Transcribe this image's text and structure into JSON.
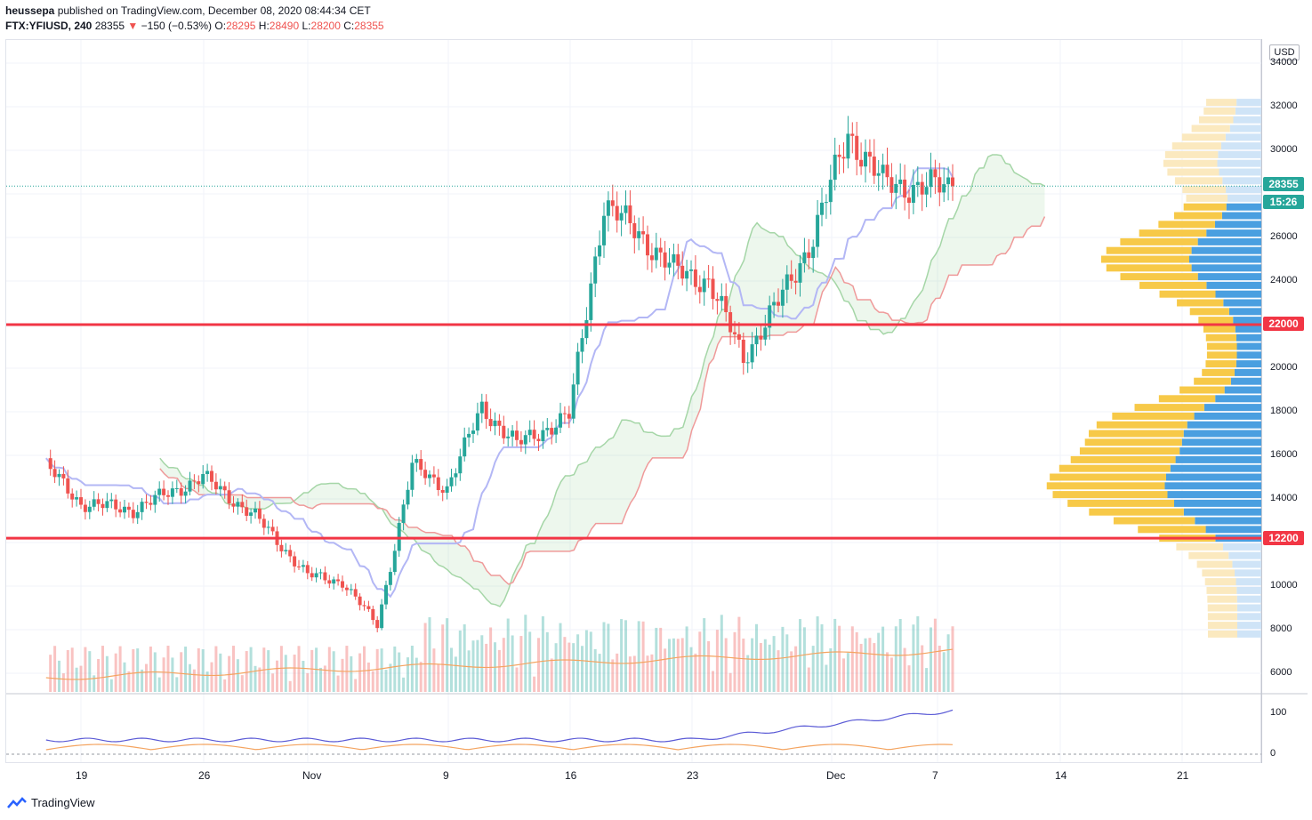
{
  "header": {
    "author": "heussepa",
    "published_text": " published on TradingView.com, December 08, 2020 08:44:34 CET",
    "symbol": "FTX:YFIUSD, 240",
    "last": "28355",
    "change_arrow": "▼",
    "change": "−150 (−0.53%)",
    "open_label": "O:",
    "open": "28295",
    "high_label": "H:",
    "high": "28490",
    "low_label": "L:",
    "low": "28200",
    "close_label": "C:",
    "close": "28355"
  },
  "axis": {
    "currency": "USD",
    "price_labels": [
      "34000",
      "32000",
      "30000",
      "26000",
      "24000",
      "20000",
      "18000",
      "16000",
      "14000",
      "10000",
      "8000",
      "6000"
    ],
    "indicator_labels": [
      "100",
      "0"
    ],
    "time_labels": [
      "19",
      "26",
      "Nov",
      "9",
      "16",
      "23",
      "Dec",
      "7",
      "14",
      "21"
    ]
  },
  "markers": {
    "current_price": "28355",
    "countdown": "15:26",
    "level_high": "22000",
    "level_low": "12200"
  },
  "colors": {
    "up": "#26a69a",
    "down": "#ef5350",
    "level": "#f23645",
    "vp_up": "#f7c948",
    "vp_down": "#4a9fe0",
    "accent": "#2962ff"
  },
  "footer": {
    "brand": "TradingView"
  },
  "chart_data": {
    "type": "candlestick",
    "interval": "240",
    "ylim": [
      6000,
      34000
    ],
    "horizontal_levels": [
      22000,
      12200
    ],
    "approx_close_series": {
      "x": [
        "Oct 17",
        "Oct 19",
        "Oct 22",
        "Oct 26",
        "Oct 29",
        "Nov 1",
        "Nov 3",
        "Nov 5",
        "Nov 7",
        "Nov 9",
        "Nov 11",
        "Nov 13",
        "Nov 16",
        "Nov 18",
        "Nov 20",
        "Nov 22",
        "Nov 24",
        "Nov 26",
        "Nov 28",
        "Nov 30",
        "Dec 2",
        "Dec 4",
        "Dec 6",
        "Dec 8"
      ],
      "values": [
        15500,
        13800,
        13500,
        15000,
        13200,
        10500,
        10200,
        8200,
        15500,
        14500,
        18200,
        16500,
        17800,
        27500,
        26200,
        24500,
        24000,
        20500,
        23000,
        26000,
        30800,
        28500,
        28300,
        28355
      ]
    }
  }
}
